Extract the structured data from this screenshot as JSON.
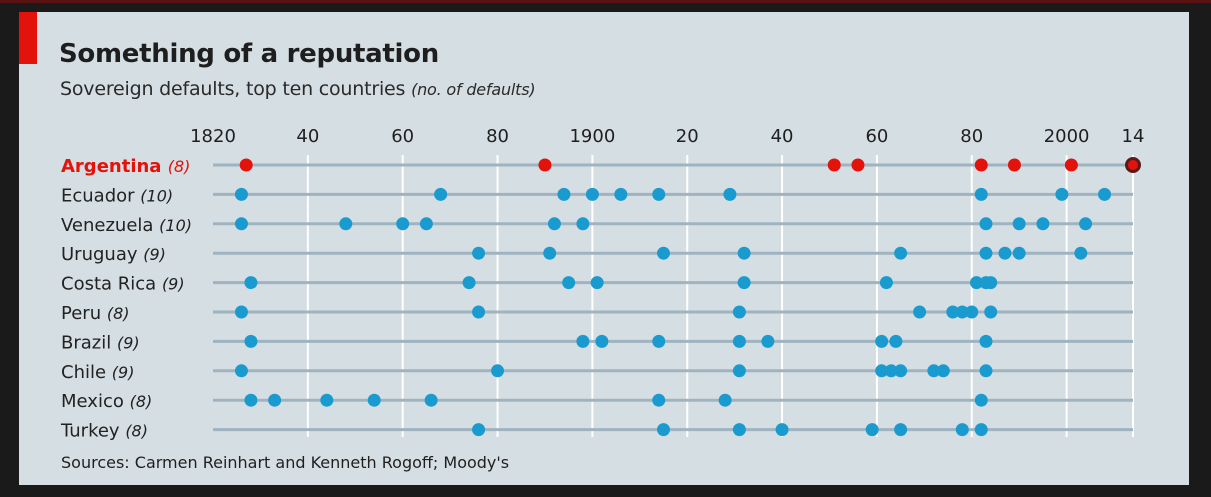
{
  "title": "Something of a reputation",
  "subtitle": "Sovereign defaults, top ten countries",
  "subtitle_unit": "(no. of defaults)",
  "source": "Sources: Carmen Reinhart and Kenneth Rogoff; Moody's",
  "colors": {
    "background": "#d5dee3",
    "highlight": "#e3120b",
    "dot": "#1a9bcf",
    "rule": "#9fb3c0",
    "label": "#222222",
    "accent": "#e3120b"
  },
  "chart_data": {
    "type": "scatter",
    "x_range": [
      1820,
      2014
    ],
    "x_ticks": [
      1820,
      1840,
      1860,
      1880,
      1900,
      1920,
      1940,
      1960,
      1980,
      2000,
      2014
    ],
    "x_tick_labels": [
      "1820",
      "40",
      "60",
      "80",
      "1900",
      "20",
      "40",
      "60",
      "80",
      "2000",
      "14"
    ],
    "grid": true,
    "series": [
      {
        "name": "Argentina",
        "count_label": "(8)",
        "highlight": true,
        "values": [
          1827,
          1890,
          1951,
          1956,
          1982,
          1989,
          2001,
          2014
        ]
      },
      {
        "name": "Ecuador",
        "count_label": "(10)",
        "values": [
          1826,
          1868,
          1894,
          1900,
          1906,
          1914,
          1929,
          1982,
          1999,
          2008
        ]
      },
      {
        "name": "Venezuela",
        "count_label": "(10)",
        "values": [
          1826,
          1848,
          1860,
          1865,
          1892,
          1898,
          1983,
          1990,
          1995,
          2004
        ]
      },
      {
        "name": "Uruguay",
        "count_label": "(9)",
        "values": [
          1876,
          1891,
          1915,
          1932,
          1965,
          1983,
          1987,
          1990,
          2003
        ]
      },
      {
        "name": "Costa Rica",
        "count_label": "(9)",
        "values": [
          1828,
          1874,
          1895,
          1901,
          1932,
          1962,
          1981,
          1983,
          1984
        ]
      },
      {
        "name": "Peru",
        "count_label": "(8)",
        "values": [
          1826,
          1876,
          1931,
          1969,
          1976,
          1978,
          1980,
          1984
        ]
      },
      {
        "name": "Brazil",
        "count_label": "(9)",
        "values": [
          1828,
          1898,
          1902,
          1914,
          1931,
          1937,
          1961,
          1964,
          1983
        ]
      },
      {
        "name": "Chile",
        "count_label": "(9)",
        "values": [
          1826,
          1880,
          1931,
          1961,
          1963,
          1965,
          1972,
          1974,
          1983
        ]
      },
      {
        "name": "Mexico",
        "count_label": "(8)",
        "values": [
          1828,
          1833,
          1844,
          1854,
          1866,
          1914,
          1928,
          1982
        ]
      },
      {
        "name": "Turkey",
        "count_label": "(8)",
        "values": [
          1876,
          1915,
          1931,
          1940,
          1959,
          1965,
          1978,
          1982
        ]
      }
    ]
  }
}
